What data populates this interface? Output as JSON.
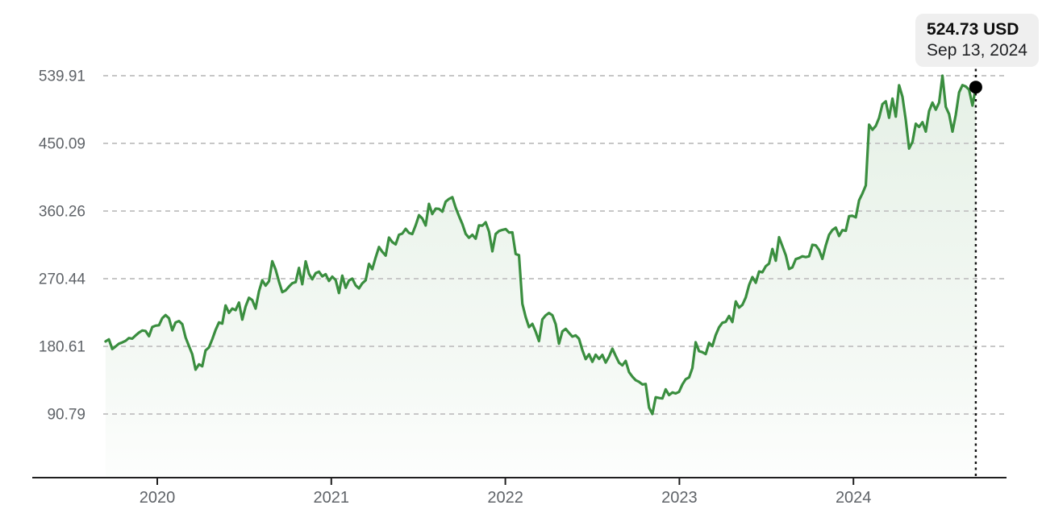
{
  "tooltip": {
    "price": "524.73 USD",
    "date": "Sep 13, 2024"
  },
  "colors": {
    "line": "#3a8e3f",
    "fill_top": "rgba(58,142,63,0.13)",
    "fill_mid": "rgba(58,142,63,0.05)",
    "fill_bottom": "rgba(58,142,63,0.01)",
    "grid": "#c7c7c7",
    "axis": "#1f1f1f",
    "tick_label": "#5f6368",
    "crosshair": "#111111",
    "marker": "#000000",
    "tooltip_bg": "#efefef"
  },
  "chart_data": {
    "type": "area",
    "title": "",
    "unit": "USD",
    "legend": "none",
    "grid": "dashed-horizontal",
    "y_ticks": [
      539.91,
      450.09,
      360.26,
      270.44,
      180.61,
      90.79
    ],
    "ylim": [
      90.79,
      539.91
    ],
    "x_ticks": [
      "2020",
      "2021",
      "2022",
      "2023",
      "2024"
    ],
    "x_start_year": 2019.703,
    "x_end_year": 2024.703,
    "sampling": "weekly",
    "last_point": {
      "value": 524.73,
      "label": "524.73 USD",
      "date": "Sep 13, 2024"
    },
    "values": [
      187.19,
      189.93,
      177.1,
      180.45,
      184.19,
      185.85,
      187.89,
      191.65,
      190.84,
      195.1,
      198.82,
      201.64,
      201.05,
      194.11,
      206.3,
      208.1,
      208.67,
      218.06,
      222.14,
      217.94,
      201.91,
      212.33,
      214.18,
      210.18,
      192.47,
      181.09,
      170.17,
      149.73,
      156.79,
      154.2,
      175.19,
      179.24,
      190.07,
      202.27,
      212.35,
      210.88,
      234.91,
      225.09,
      230.77,
      228.58,
      238.79,
      216.08,
      233.42,
      245.07,
      242.03,
      230.72,
      253.67,
      268.44,
      261.24,
      267.01,
      293.66,
      282.73,
      266.61,
      252.53,
      254.82,
      259.94,
      264.45,
      265.93,
      284.79,
      263.11,
      293.41,
      276.95,
      269.7,
      277.81,
      279.7,
      273.55,
      276.4,
      267.4,
      273.16,
      268.74,
      251.36,
      274.5,
      258.33,
      268.1,
      270.5,
      261.56,
      257.62,
      264.28,
      268.4,
      290.11,
      283.02,
      298.66,
      312.46,
      306.18,
      301.13,
      325.08,
      319.08,
      315.94,
      328.73,
      330.35,
      336.58,
      331.26,
      329.66,
      341.37,
      354.7,
      350.42,
      341.16,
      369.79,
      356.3,
      363.51,
      363.18,
      359.37,
      372.63,
      376.26,
      378.69,
      364.72,
      353.58,
      343.01,
      330.05,
      324.76,
      328.69,
      323.57,
      341.13,
      340.89,
      345.3,
      333.12,
      306.84,
      329.75,
      333.79,
      335.24,
      336.35,
      331.79,
      331.9,
      303.17,
      301.71,
      237.09,
      219.55,
      206.16,
      210.48,
      200.06,
      187.61,
      216.49,
      221.82,
      224.85,
      222.0,
      210.18,
      184.11,
      200.47,
      203.77,
      198.62,
      193.54,
      195.13,
      190.78,
      175.57,
      163.74,
      170.16,
      160.03,
      169.49,
      163.94,
      169.27,
      159.1,
      167.11,
      177.49,
      167.96,
      158.79,
      155.33,
      161.28,
      146.29,
      140.41,
      135.68,
      133.45,
      130.01,
      130.71,
      99.2,
      90.79,
      113.02,
      112.05,
      111.41,
      123.49,
      115.9,
      119.43,
      118.04,
      120.34,
      130.02,
      136.98,
      139.37,
      151.74,
      186.06,
      174.15,
      172.88,
      170.39,
      185.25,
      180.9,
      195.61,
      206.01,
      211.94,
      213.07,
      220.96,
      212.89,
      240.32,
      232.04,
      235.68,
      245.64,
      262.04,
      272.61,
      264.95,
      280.0,
      279.0,
      286.98,
      290.53,
      309.87,
      294.26,
      325.48,
      313.71,
      301.64,
      283.25,
      285.5,
      296.38,
      297.89,
      300.21,
      299.08,
      300.21,
      315.43,
      314.69,
      308.65,
      296.73,
      314.6,
      328.77,
      335.04,
      338.23,
      327.15,
      334.92,
      334.07,
      353.39,
      353.96,
      351.95,
      374.49,
      383.45,
      394.14,
      474.99,
      468.11,
      473.32,
      484.03,
      502.3,
      505.95,
      484.1,
      509.58,
      485.58,
      527.34,
      511.9,
      481.07,
      443.29,
      451.96,
      476.2,
      471.91,
      478.22,
      465.68,
      492.96,
      504.17,
      494.78,
      504.22,
      539.91,
      498.64,
      488.85,
      465.7,
      488.14,
      517.77,
      527.42,
      525.6,
      521.31,
      500.27,
      524.73
    ]
  }
}
